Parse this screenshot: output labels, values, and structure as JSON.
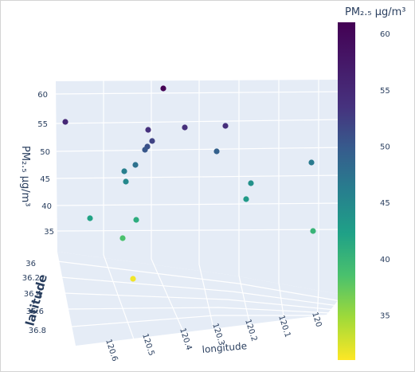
{
  "chart_data": {
    "type": "scatter3d",
    "axes": {
      "x": {
        "title": "longitude",
        "ticks": [
          "120.6",
          "120.5",
          "120.4",
          "120.3",
          "120.2",
          "120.1",
          "120"
        ]
      },
      "y": {
        "title": "latitude",
        "ticks": [
          "36",
          "36.2",
          "36.4",
          "36.6",
          "36.8"
        ]
      },
      "z": {
        "title": "PM₂.₅ μg/m³",
        "ticks": [
          "35",
          "40",
          "45",
          "50",
          "55",
          "60"
        ]
      }
    },
    "colorbar": {
      "title": "PM₂.₅ μg/m³",
      "ticks": [
        "35",
        "40",
        "45",
        "50",
        "55",
        "60"
      ],
      "range": [
        31,
        61
      ],
      "colorscale": "viridis"
    },
    "points": [
      {
        "pm25": 61.2
      },
      {
        "pm25": 55.0
      },
      {
        "pm25": 53.6
      },
      {
        "pm25": 54.0
      },
      {
        "pm25": 54.0
      },
      {
        "pm25": 52.0
      },
      {
        "pm25": 50.8
      },
      {
        "pm25": 50.2
      },
      {
        "pm25": 49.2
      },
      {
        "pm25": 47.5
      },
      {
        "pm25": 46.5
      },
      {
        "pm25": 46.0
      },
      {
        "pm25": 45.0
      },
      {
        "pm25": 44.0
      },
      {
        "pm25": 43.0
      },
      {
        "pm25": 42.0
      },
      {
        "pm25": 41.0
      },
      {
        "pm25": 40.0
      },
      {
        "pm25": 38.5
      },
      {
        "pm25": 31.5
      }
    ]
  }
}
